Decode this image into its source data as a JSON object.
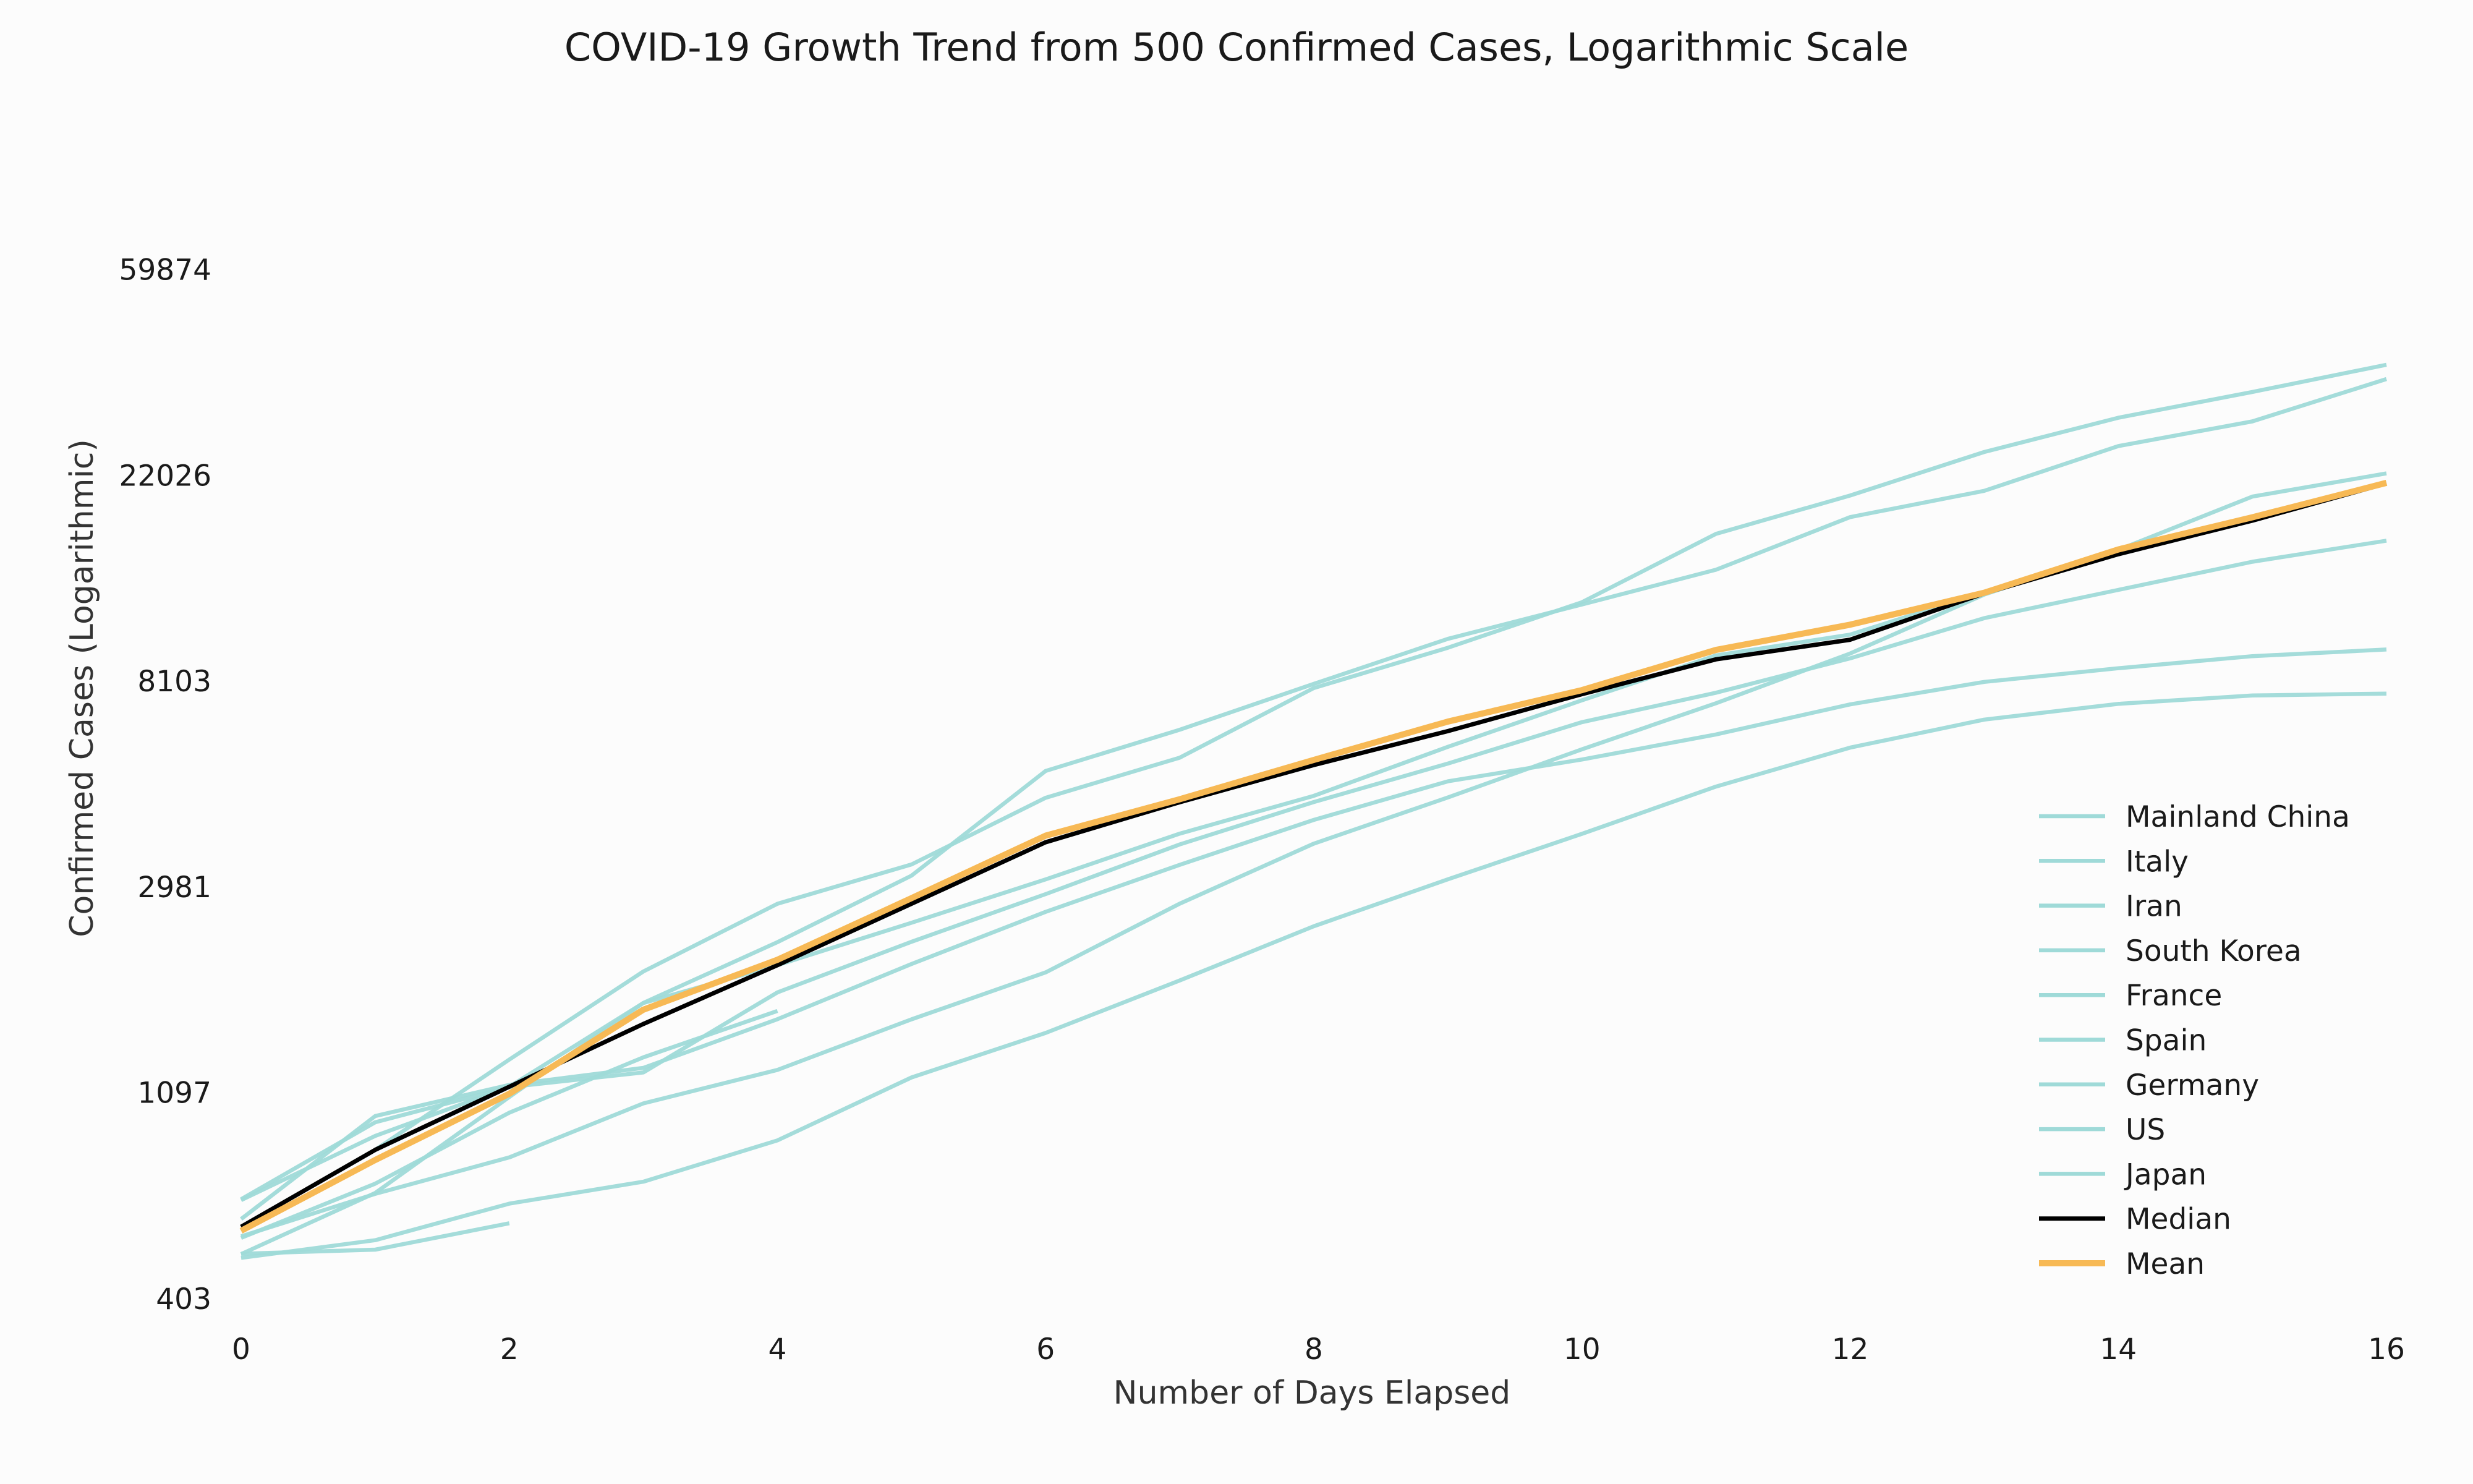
{
  "chart_data": {
    "type": "line",
    "title": "COVID-19 Growth Trend from 500 Confirmed Cases, Logarithmic Scale",
    "xlabel": "Number of Days Elapsed",
    "ylabel": "Confirmed Cases (Logarithmic)",
    "xlim": [
      0,
      16
    ],
    "ylim": [
      403,
      150000
    ],
    "y_scale": "log",
    "x_ticks": [
      0,
      2,
      4,
      6,
      8,
      10,
      12,
      14,
      16
    ],
    "y_ticks": [
      403,
      1097,
      2981,
      8103,
      22026,
      59874
    ],
    "grid": false,
    "legend_position": "lower-right",
    "colors": {
      "country": "#9fdad8",
      "median": "#000000",
      "mean": "#f7b955"
    },
    "series": [
      {
        "name": "Mainland China",
        "x": [
          0,
          1,
          2,
          3,
          4,
          5,
          6,
          7,
          8,
          9,
          10,
          11,
          12,
          13,
          14,
          15,
          16
        ],
        "y": [
          571,
          830,
          1287,
          1975,
          2744,
          3322,
          4593,
          5580,
          7827,
          9520,
          11880,
          16560,
          19950,
          24650,
          29110,
          33000,
          37660
        ]
      },
      {
        "name": "Italy",
        "x": [
          0,
          1,
          2,
          3,
          4,
          5,
          6,
          7,
          8,
          9,
          10,
          11,
          12,
          13,
          14,
          15,
          16
        ],
        "y": [
          650,
          888,
          1128,
          1694,
          2036,
          2502,
          3089,
          3858,
          4636,
          5883,
          7375,
          9172,
          10149,
          12462,
          15113,
          17660,
          21157
        ]
      },
      {
        "name": "Iran",
        "x": [
          0,
          1,
          2,
          3,
          4,
          5,
          6,
          7,
          8,
          9,
          10,
          11,
          12,
          13,
          14,
          15,
          16
        ],
        "y": [
          593,
          978,
          1138,
          1236,
          1566,
          2048,
          2638,
          3315,
          4124,
          4975,
          5531,
          6247,
          7229,
          8065,
          8620,
          9140,
          9440
        ]
      },
      {
        "name": "South Korea",
        "x": [
          0,
          1,
          2,
          3,
          4,
          5,
          6,
          7,
          8,
          9,
          10,
          11,
          12,
          13,
          14,
          15,
          16
        ],
        "y": [
          491,
          535,
          639,
          711,
          869,
          1180,
          1465,
          1890,
          2460,
          3090,
          3855,
          4850,
          5860,
          6715,
          7250,
          7550,
          7620
        ]
      },
      {
        "name": "France",
        "x": [
          0,
          1,
          2,
          3,
          4,
          5,
          6,
          7,
          8,
          9,
          10,
          11,
          12,
          13,
          14,
          15,
          16
        ],
        "y": [
          653,
          949,
          1126,
          1209,
          1784,
          2281,
          2876,
          3661,
          4499,
          5423,
          6633,
          7652,
          9043,
          10995,
          12612,
          14459,
          16018
        ]
      },
      {
        "name": "Spain",
        "x": [
          0,
          1,
          2,
          3,
          4,
          5,
          6,
          7,
          8,
          9,
          10,
          11,
          12,
          13,
          14,
          15,
          16
        ],
        "y": [
          500,
          673,
          1073,
          1695,
          2277,
          3146,
          5232,
          6391,
          7988,
          9942,
          11748,
          13910,
          17963,
          20410,
          25374,
          28603,
          35136
        ]
      },
      {
        "name": "Germany",
        "x": [
          0,
          1,
          2,
          3,
          4,
          5,
          6,
          7,
          8,
          9,
          10,
          11,
          12,
          13,
          14,
          15,
          16
        ],
        "y": [
          545,
          670,
          800,
          1040,
          1224,
          1565,
          1966,
          2745,
          3675,
          4599,
          5813,
          7272,
          9257,
          12327,
          15320,
          19848,
          22213
        ]
      },
      {
        "name": "US",
        "x": [
          0,
          1,
          2,
          3,
          4
        ],
        "y": [
          541,
          704,
          994,
          1301,
          1630
        ]
      },
      {
        "name": "Japan",
        "x": [
          0,
          1,
          2
        ],
        "y": [
          501,
          511,
          581
        ]
      },
      {
        "name": "Median",
        "x": [
          0,
          1,
          2,
          3,
          4,
          5,
          6,
          7,
          8,
          9,
          10,
          11,
          12,
          13,
          14,
          15,
          16
        ],
        "y": [
          571,
          830,
          1128,
          1530,
          2036,
          2744,
          3700,
          4495,
          5385,
          6350,
          7600,
          9000,
          9900,
          12400,
          15000,
          17660,
          21157
        ]
      },
      {
        "name": "Mean",
        "x": [
          0,
          1,
          2,
          3,
          4,
          5,
          6,
          7,
          8,
          9,
          10,
          11,
          12,
          13,
          14,
          15,
          16
        ],
        "y": [
          560,
          790,
          1090,
          1640,
          2090,
          2820,
          3820,
          4560,
          5520,
          6650,
          7750,
          9420,
          10650,
          12440,
          15350,
          17950,
          21220
        ]
      }
    ]
  }
}
